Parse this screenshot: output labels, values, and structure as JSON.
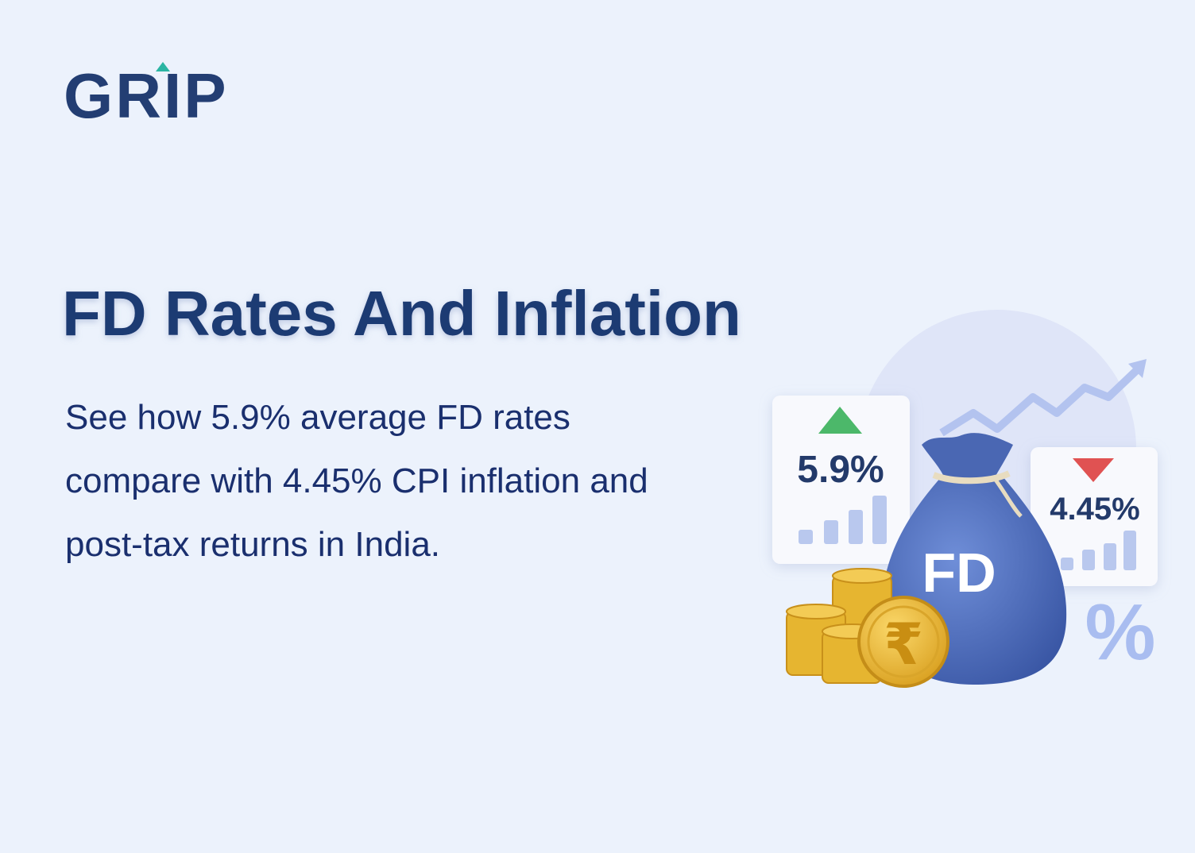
{
  "logo": "GRIP",
  "title": "FD Rates And Inflation",
  "description": [
    "See how 5.9% average FD rates",
    "compare with 4.45% CPI inflation and",
    "post-tax returns in India."
  ],
  "illustration": {
    "fd_rate": "5.9%",
    "inflation_rate": "4.45%",
    "bag_label": "FD",
    "coin_symbol": "₹",
    "percent_symbol": "%"
  }
}
